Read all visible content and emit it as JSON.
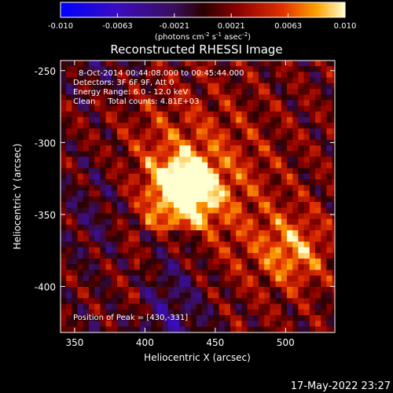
{
  "chart_data": {
    "type": "heatmap",
    "title": "Reconstructed RHESSI Image",
    "xlabel": "Heliocentric X (arcsec)",
    "ylabel": "Heliocentric Y (arcsec)",
    "xlim": [
      340,
      535
    ],
    "ylim": [
      -432,
      -243
    ],
    "x_ticks": [
      350,
      400,
      450,
      500
    ],
    "y_ticks": [
      -250,
      -300,
      -350,
      -400
    ],
    "colorbar": {
      "ticks": [
        "-0.010",
        "-0.0063",
        "-0.0021",
        "0.0021",
        "0.0063",
        "0.010"
      ],
      "range": [
        -0.01,
        0.01
      ],
      "unit_label": "(photons cm",
      "unit_parts": [
        "(photons cm",
        "-2",
        " s",
        "-1",
        " asec",
        "-2",
        ")"
      ]
    },
    "annotations": [
      "8-Oct-2014 00:44:08.000 to 00:45:44.000",
      "Detectors: 3F 6F 9F, Att 0",
      "Energy Range: 6.0 - 12.0 keV",
      "Clean     Total counts: 4.81E+03"
    ],
    "peak_label": "Position of Peak = [430,-331]",
    "peak": {
      "x": 430,
      "y": -331,
      "value": 0.01
    },
    "secondary_source": {
      "x": 505,
      "y": -376,
      "value": 0.006
    },
    "timestamp": "17-May-2022 23:27"
  }
}
